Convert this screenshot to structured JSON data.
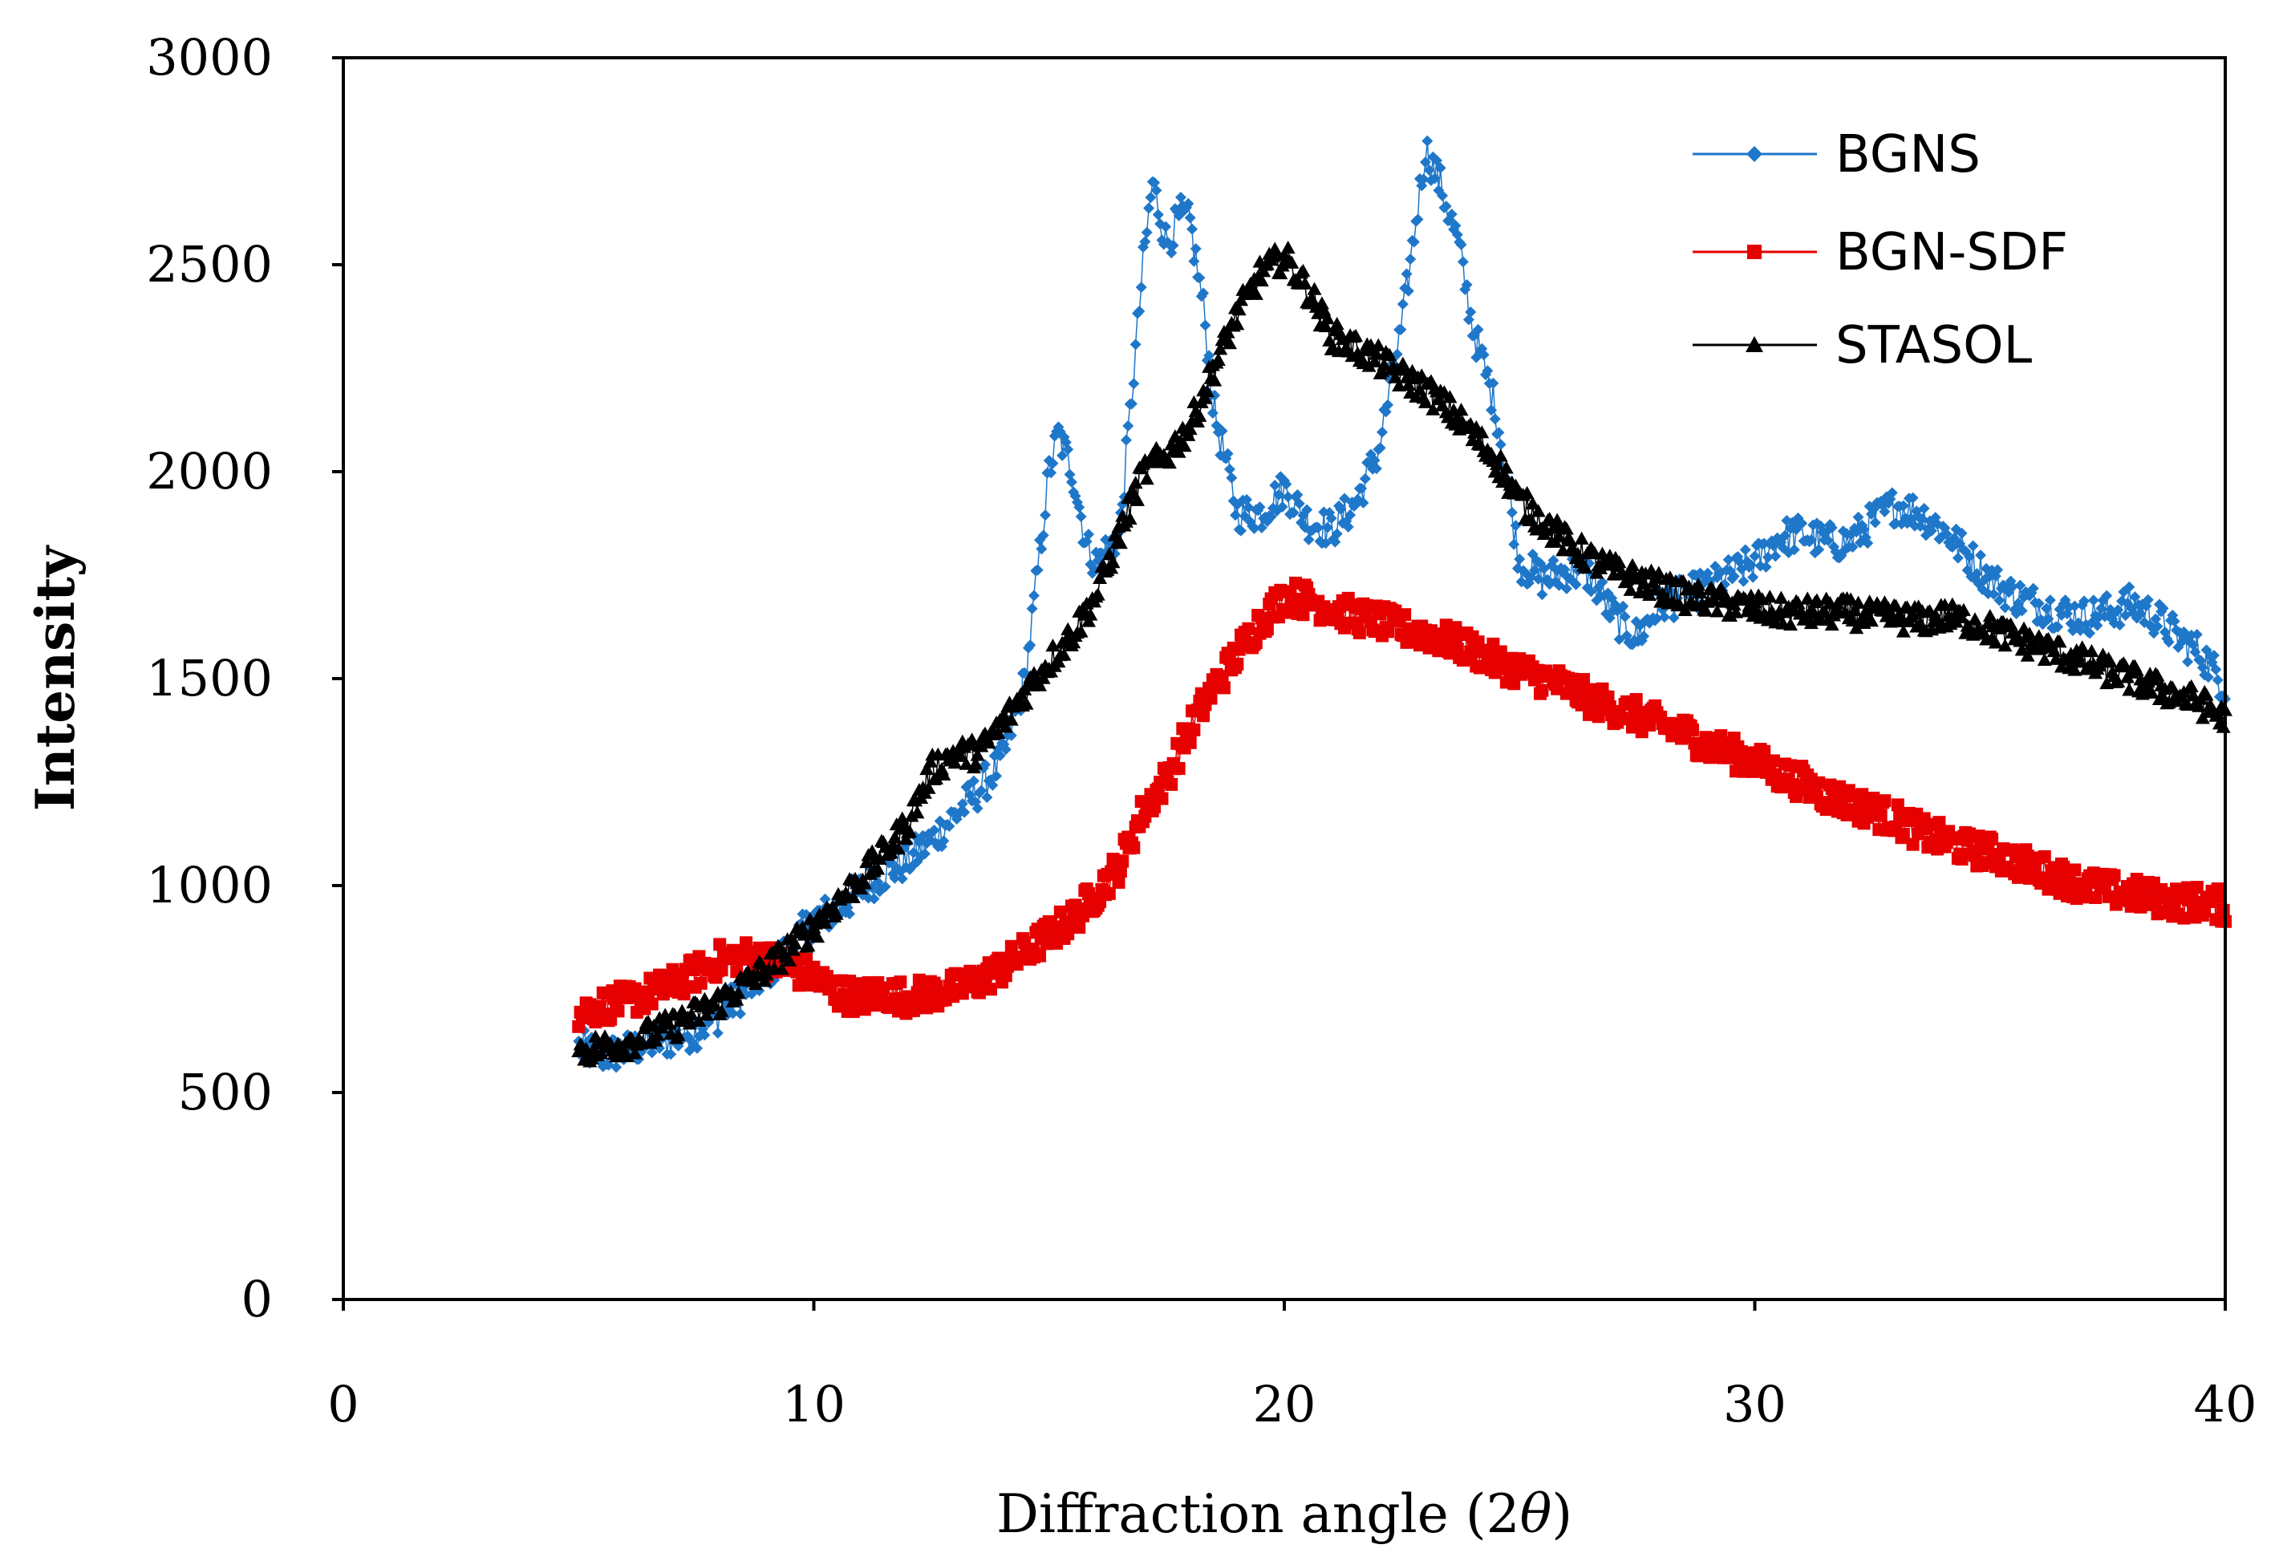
{
  "chart_data": {
    "type": "scatter",
    "title": "",
    "xlabel": "Diffraction angle (2",
    "xlabel_symbol": "θ",
    "xlabel_close": ")",
    "ylabel": "Intensity",
    "xlim": [
      0,
      40
    ],
    "ylim": [
      0,
      3000
    ],
    "x_ticks": [
      0,
      10,
      20,
      30,
      40
    ],
    "y_ticks": [
      0,
      500,
      1000,
      1500,
      2000,
      2500,
      3000
    ],
    "grid": false,
    "legend_position": "top-right",
    "series": [
      {
        "name": "BGNS",
        "color": "#1f77c9",
        "marker": "diamond",
        "points": [
          [
            5,
            610
          ],
          [
            5.5,
            590
          ],
          [
            6,
            600
          ],
          [
            6.5,
            620
          ],
          [
            7,
            630
          ],
          [
            7.5,
            650
          ],
          [
            8,
            690
          ],
          [
            8.5,
            740
          ],
          [
            9,
            790
          ],
          [
            9.5,
            850
          ],
          [
            10,
            920
          ],
          [
            10.5,
            940
          ],
          [
            11,
            990
          ],
          [
            11.5,
            1030
          ],
          [
            12,
            1060
          ],
          [
            12.5,
            1110
          ],
          [
            13,
            1170
          ],
          [
            13.5,
            1230
          ],
          [
            14,
            1300
          ],
          [
            14.5,
            1500
          ],
          [
            15,
            2000
          ],
          [
            15.2,
            2090
          ],
          [
            15.5,
            2000
          ],
          [
            15.8,
            1820
          ],
          [
            16,
            1780
          ],
          [
            16.5,
            1850
          ],
          [
            17,
            2500
          ],
          [
            17.2,
            2700
          ],
          [
            17.5,
            2550
          ],
          [
            17.8,
            2620
          ],
          [
            18,
            2600
          ],
          [
            18.3,
            2380
          ],
          [
            18.5,
            2150
          ],
          [
            19,
            1900
          ],
          [
            19.5,
            1900
          ],
          [
            20,
            1960
          ],
          [
            20.5,
            1880
          ],
          [
            21,
            1860
          ],
          [
            21.5,
            1920
          ],
          [
            22,
            2050
          ],
          [
            22.5,
            2350
          ],
          [
            23,
            2780
          ],
          [
            23.3,
            2700
          ],
          [
            23.7,
            2550
          ],
          [
            24,
            2350
          ],
          [
            24.5,
            2150
          ],
          [
            25,
            1780
          ],
          [
            25.5,
            1740
          ],
          [
            26,
            1760
          ],
          [
            26.5,
            1750
          ],
          [
            27,
            1650
          ],
          [
            27.5,
            1600
          ],
          [
            28,
            1680
          ],
          [
            28.5,
            1700
          ],
          [
            29,
            1720
          ],
          [
            29.5,
            1750
          ],
          [
            30,
            1780
          ],
          [
            30.5,
            1840
          ],
          [
            31,
            1850
          ],
          [
            31.5,
            1830
          ],
          [
            32,
            1830
          ],
          [
            32.5,
            1880
          ],
          [
            33,
            1920
          ],
          [
            33.5,
            1900
          ],
          [
            34,
            1860
          ],
          [
            34.5,
            1800
          ],
          [
            35,
            1740
          ],
          [
            35.5,
            1700
          ],
          [
            36,
            1680
          ],
          [
            36.5,
            1660
          ],
          [
            37,
            1650
          ],
          [
            37.5,
            1660
          ],
          [
            38,
            1680
          ],
          [
            38.5,
            1650
          ],
          [
            39,
            1600
          ],
          [
            39.5,
            1560
          ],
          [
            40,
            1480
          ]
        ]
      },
      {
        "name": "BGN-SDF",
        "color": "#e60000",
        "marker": "square",
        "points": [
          [
            5,
            690
          ],
          [
            5.5,
            710
          ],
          [
            6,
            720
          ],
          [
            6.5,
            740
          ],
          [
            7,
            760
          ],
          [
            7.5,
            790
          ],
          [
            8,
            820
          ],
          [
            8.5,
            830
          ],
          [
            9,
            820
          ],
          [
            9.5,
            800
          ],
          [
            10,
            780
          ],
          [
            10.5,
            740
          ],
          [
            11,
            730
          ],
          [
            11.5,
            740
          ],
          [
            12,
            730
          ],
          [
            12.5,
            740
          ],
          [
            13,
            750
          ],
          [
            13.5,
            770
          ],
          [
            14,
            800
          ],
          [
            14.5,
            840
          ],
          [
            15,
            880
          ],
          [
            15.5,
            920
          ],
          [
            16,
            980
          ],
          [
            16.5,
            1050
          ],
          [
            17,
            1180
          ],
          [
            17.5,
            1260
          ],
          [
            18,
            1380
          ],
          [
            18.5,
            1480
          ],
          [
            19,
            1560
          ],
          [
            19.5,
            1640
          ],
          [
            20,
            1700
          ],
          [
            20.5,
            1690
          ],
          [
            21,
            1670
          ],
          [
            21.5,
            1650
          ],
          [
            22,
            1640
          ],
          [
            22.5,
            1620
          ],
          [
            23,
            1610
          ],
          [
            23.5,
            1590
          ],
          [
            24,
            1570
          ],
          [
            24.5,
            1540
          ],
          [
            25,
            1520
          ],
          [
            25.5,
            1500
          ],
          [
            26,
            1480
          ],
          [
            26.5,
            1450
          ],
          [
            27,
            1430
          ],
          [
            27.5,
            1410
          ],
          [
            28,
            1390
          ],
          [
            28.5,
            1370
          ],
          [
            29,
            1340
          ],
          [
            29.5,
            1320
          ],
          [
            30,
            1300
          ],
          [
            30.5,
            1270
          ],
          [
            31,
            1250
          ],
          [
            31.5,
            1220
          ],
          [
            32,
            1200
          ],
          [
            32.5,
            1180
          ],
          [
            33,
            1160
          ],
          [
            33.5,
            1130
          ],
          [
            34,
            1110
          ],
          [
            34.5,
            1090
          ],
          [
            35,
            1080
          ],
          [
            35.5,
            1060
          ],
          [
            36,
            1040
          ],
          [
            36.5,
            1020
          ],
          [
            37,
            1000
          ],
          [
            37.5,
            990
          ],
          [
            38,
            980
          ],
          [
            38.5,
            970
          ],
          [
            39,
            960
          ],
          [
            39.5,
            960
          ],
          [
            40,
            950
          ]
        ]
      },
      {
        "name": "STASOL",
        "color": "#000000",
        "marker": "triangle",
        "points": [
          [
            5,
            600
          ],
          [
            5.5,
            610
          ],
          [
            6,
            620
          ],
          [
            6.5,
            640
          ],
          [
            7,
            660
          ],
          [
            7.5,
            690
          ],
          [
            8,
            720
          ],
          [
            8.5,
            760
          ],
          [
            9,
            800
          ],
          [
            9.5,
            850
          ],
          [
            10,
            900
          ],
          [
            10.5,
            960
          ],
          [
            11,
            1020
          ],
          [
            11.5,
            1080
          ],
          [
            12,
            1150
          ],
          [
            12.5,
            1280
          ],
          [
            13,
            1320
          ],
          [
            13.5,
            1320
          ],
          [
            14,
            1390
          ],
          [
            14.5,
            1470
          ],
          [
            15,
            1540
          ],
          [
            15.5,
            1610
          ],
          [
            16,
            1700
          ],
          [
            16.5,
            1850
          ],
          [
            17,
            2000
          ],
          [
            17.5,
            2040
          ],
          [
            18,
            2110
          ],
          [
            18.5,
            2250
          ],
          [
            19,
            2380
          ],
          [
            19.5,
            2480
          ],
          [
            20,
            2520
          ],
          [
            20.5,
            2440
          ],
          [
            21,
            2330
          ],
          [
            21.5,
            2300
          ],
          [
            22,
            2270
          ],
          [
            22.5,
            2230
          ],
          [
            23,
            2200
          ],
          [
            23.5,
            2150
          ],
          [
            24,
            2090
          ],
          [
            24.5,
            2030
          ],
          [
            25,
            1930
          ],
          [
            25.5,
            1880
          ],
          [
            26,
            1830
          ],
          [
            26.5,
            1790
          ],
          [
            27,
            1760
          ],
          [
            27.5,
            1740
          ],
          [
            28,
            1720
          ],
          [
            28.5,
            1700
          ],
          [
            29,
            1690
          ],
          [
            29.5,
            1680
          ],
          [
            30,
            1670
          ],
          [
            30.5,
            1660
          ],
          [
            31,
            1660
          ],
          [
            31.5,
            1660
          ],
          [
            32,
            1660
          ],
          [
            32.5,
            1650
          ],
          [
            33,
            1650
          ],
          [
            33.5,
            1640
          ],
          [
            34,
            1650
          ],
          [
            34.5,
            1640
          ],
          [
            35,
            1620
          ],
          [
            35.5,
            1600
          ],
          [
            36,
            1580
          ],
          [
            36.5,
            1560
          ],
          [
            37,
            1540
          ],
          [
            37.5,
            1520
          ],
          [
            38,
            1500
          ],
          [
            38.5,
            1480
          ],
          [
            39,
            1460
          ],
          [
            39.5,
            1440
          ],
          [
            40,
            1400
          ]
        ]
      }
    ]
  }
}
